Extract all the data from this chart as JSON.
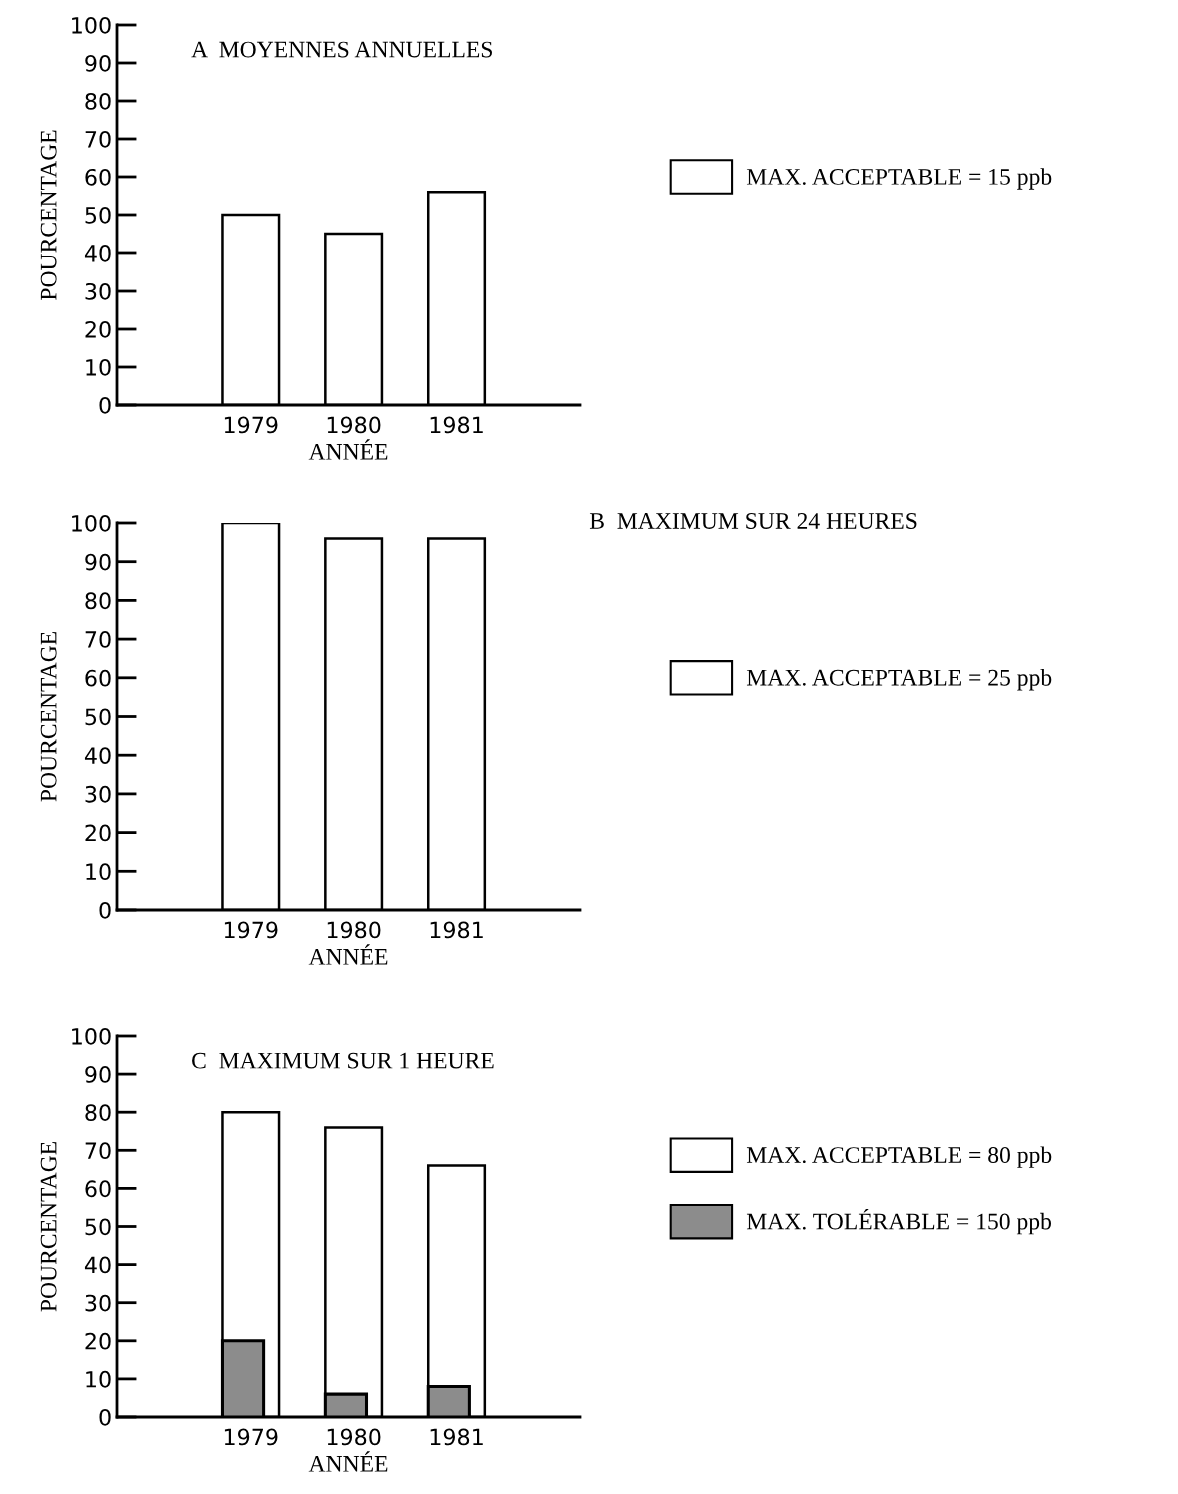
{
  "chart_data": [
    {
      "type": "bar",
      "title": "A  MOYENNES ANNUELLES",
      "xlabel": "ANNÉE",
      "ylabel": "POURCENTAGE",
      "categories": [
        "1979",
        "1980",
        "1981"
      ],
      "ylim": [
        0,
        100
      ],
      "yticks": [
        0,
        10,
        20,
        30,
        40,
        50,
        60,
        70,
        80,
        90,
        100
      ],
      "grid": false,
      "legend": "right",
      "series": [
        {
          "name": "MAX. ACCEPTABLE = 15 ppb",
          "color": "#ffffff",
          "values": [
            50,
            45,
            56
          ]
        }
      ]
    },
    {
      "type": "bar",
      "title": "B  MAXIMUM SUR 24 HEURES",
      "xlabel": "ANNÉE",
      "ylabel": "POURCENTAGE",
      "categories": [
        "1979",
        "1980",
        "1981"
      ],
      "ylim": [
        0,
        100
      ],
      "yticks": [
        0,
        10,
        20,
        30,
        40,
        50,
        60,
        70,
        80,
        90,
        100
      ],
      "grid": false,
      "legend": "right",
      "series": [
        {
          "name": "MAX. ACCEPTABLE = 25 ppb",
          "color": "#ffffff",
          "values": [
            100,
            96,
            96
          ]
        }
      ]
    },
    {
      "type": "bar",
      "title": "C  MAXIMUM SUR 1 HEURE",
      "xlabel": "ANNÉE",
      "ylabel": "POURCENTAGE",
      "categories": [
        "1979",
        "1980",
        "1981"
      ],
      "ylim": [
        0,
        100
      ],
      "yticks": [
        0,
        10,
        20,
        30,
        40,
        50,
        60,
        70,
        80,
        90,
        100
      ],
      "grid": false,
      "legend": "right",
      "series": [
        {
          "name": "MAX. ACCEPTABLE = 80 ppb",
          "color": "#ffffff",
          "values": [
            80,
            76,
            66
          ]
        },
        {
          "name": "MAX. TOLÉRABLE = 150 ppb",
          "color": "#8c8c8c",
          "values": [
            20,
            6,
            8
          ]
        }
      ]
    }
  ]
}
